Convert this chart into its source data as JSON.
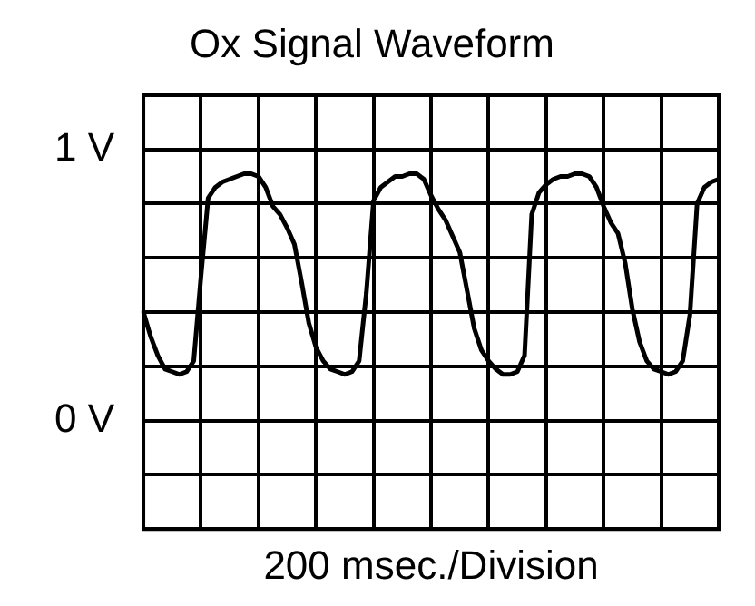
{
  "chart_data": {
    "type": "line",
    "title": "Ox Signal Waveform",
    "xlabel": "200 msec./Division",
    "categories": [
      null,
      null,
      null,
      null,
      null,
      null,
      null,
      null,
      null,
      null,
      null,
      null,
      null,
      null,
      null,
      null,
      null,
      null,
      null,
      null,
      null,
      null,
      null,
      null,
      null,
      null,
      null,
      null,
      null,
      null,
      null,
      null,
      null,
      null,
      null,
      null,
      null,
      null,
      null,
      null,
      null,
      null,
      null,
      null,
      null,
      null,
      null,
      null,
      null,
      null,
      null,
      null,
      null,
      null,
      null,
      null,
      null,
      null,
      null,
      null,
      null,
      null,
      null,
      null,
      null,
      null,
      null,
      null,
      null,
      null,
      null,
      null,
      null,
      null,
      null,
      null,
      null,
      null,
      null,
      null,
      null
    ],
    "series": [
      {
        "color": "#000000",
        "values": [
          0.4,
          0.31,
          0.24,
          0.19,
          0.18,
          0.17,
          0.18,
          0.22,
          0.53,
          0.82,
          0.86,
          0.88,
          0.89,
          0.9,
          0.91,
          0.91,
          0.9,
          0.86,
          0.79,
          0.76,
          0.71,
          0.65,
          0.51,
          0.36,
          0.27,
          0.22,
          0.19,
          0.18,
          0.17,
          0.18,
          0.22,
          0.47,
          0.81,
          0.86,
          0.88,
          0.9,
          0.9,
          0.91,
          0.91,
          0.89,
          0.83,
          0.78,
          0.74,
          0.68,
          0.62,
          0.48,
          0.34,
          0.26,
          0.22,
          0.19,
          0.17,
          0.17,
          0.18,
          0.24,
          0.76,
          0.84,
          0.87,
          0.89,
          0.9,
          0.9,
          0.91,
          0.91,
          0.9,
          0.86,
          0.79,
          0.73,
          0.69,
          0.58,
          0.41,
          0.29,
          0.22,
          0.19,
          0.18,
          0.17,
          0.18,
          0.22,
          0.39,
          0.8,
          0.86,
          0.88,
          0.89
        ]
      }
    ],
    "ylim": [
      -0.4,
      1.2
    ],
    "yticks": [
      {
        "value": -0.4,
        "label": null
      },
      {
        "value": -0.2,
        "label": null
      },
      {
        "value": 0,
        "label": "0 V"
      },
      {
        "value": 0.2,
        "label": null
      },
      {
        "value": 0.4,
        "label": null
      },
      {
        "value": 0.6,
        "label": null
      },
      {
        "value": 0.8,
        "label": null
      },
      {
        "value": 1,
        "label": "1 V"
      },
      {
        "value": 1.2,
        "label": null
      }
    ],
    "grid": true,
    "legend": false,
    "marker": "none",
    "line_style": "solid",
    "tick_labels": "y"
  }
}
